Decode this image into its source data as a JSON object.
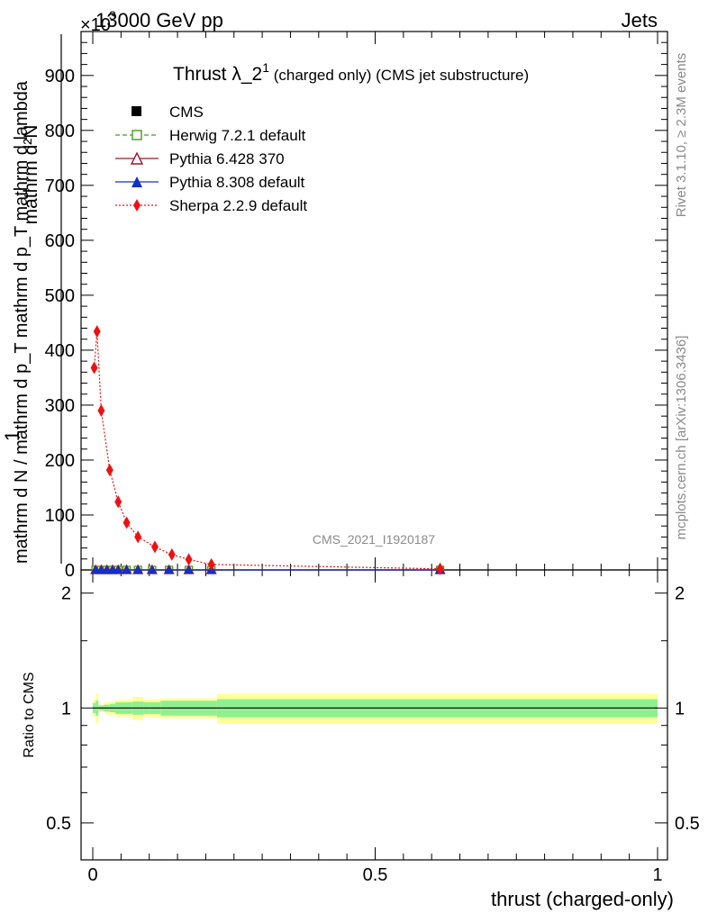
{
  "header": {
    "left_label": "13000 GeV pp",
    "right_label": "Jets",
    "y_multiplier": "×10",
    "y_multiplier_exp": "3"
  },
  "plot": {
    "title_main": "Thrust λ_2",
    "title_sup": "1",
    "title_rest": " (charged only) (CMS jet substructure)",
    "analysis_id": "CMS_2021_I1920187",
    "side_label_top": "Rivet 3.1.10, ≥ 2.3M events",
    "side_label_bottom": "mcplots.cern.ch [arXiv:1306.3436]",
    "ylabel_numer": "mathrm d²N",
    "ylabel_one": "1",
    "ylabel_denom": "mathrm d N / mathrm d p_T mathrm d p_T mathrm d lambda",
    "ratio_ylabel": "Ratio to CMS",
    "xlabel": "thrust (charged-only)"
  },
  "colors": {
    "cms": "#000000",
    "herwig": "#4a9a1a",
    "pythia6": "#9b1b2a",
    "pythia8": "#1030c8",
    "sherpa": "#ee1111",
    "band_inner": "#90f090",
    "band_outer": "#ffff99"
  },
  "chart_data": {
    "type": "line",
    "xlabel": "thrust (charged-only)",
    "ylabel": "1/(dN/dp_T) d²N/(dp_T dλ)",
    "xlim": [
      0,
      1
    ],
    "ylim": [
      0,
      980
    ],
    "y_scale_note": "×10³",
    "yticks": [
      0,
      100,
      200,
      300,
      400,
      500,
      600,
      700,
      800,
      900
    ],
    "xticks": [
      0,
      0.5,
      1
    ],
    "legend_position": "top-left",
    "series": [
      {
        "name": "CMS",
        "marker": "square",
        "x": [
          0.005,
          0.015,
          0.025,
          0.035,
          0.045,
          0.06,
          0.08,
          0.105,
          0.135,
          0.17,
          0.21,
          0.615
        ],
        "y": [
          0,
          0,
          0,
          0,
          0,
          0,
          0,
          0,
          0,
          0,
          0,
          0
        ]
      },
      {
        "name": "Herwig 7.2.1 default",
        "marker": "open-square",
        "x": [
          0.005,
          0.015,
          0.025,
          0.035,
          0.045,
          0.06,
          0.08,
          0.105,
          0.135,
          0.17,
          0.21,
          0.615
        ],
        "y": [
          0,
          0,
          0,
          0,
          0,
          0,
          0,
          0,
          0,
          0,
          0,
          0
        ]
      },
      {
        "name": "Pythia 6.428 370",
        "marker": "open-triangle",
        "x": [
          0.005,
          0.015,
          0.025,
          0.035,
          0.045,
          0.06,
          0.08,
          0.105,
          0.135,
          0.17,
          0.21,
          0.615
        ],
        "y": [
          0,
          0,
          0,
          0,
          0,
          0,
          0,
          0,
          0,
          0,
          0,
          0
        ]
      },
      {
        "name": "Pythia 8.308 default",
        "marker": "triangle",
        "x": [
          0.005,
          0.015,
          0.025,
          0.035,
          0.045,
          0.06,
          0.08,
          0.105,
          0.135,
          0.17,
          0.21,
          0.615
        ],
        "y": [
          0,
          0,
          0,
          0,
          0,
          0,
          0,
          0,
          0,
          0,
          0,
          0
        ]
      },
      {
        "name": "Sherpa 2.2.9 default",
        "marker": "diamond",
        "x": [
          0.0025,
          0.0075,
          0.015,
          0.03,
          0.045,
          0.06,
          0.08,
          0.11,
          0.14,
          0.17,
          0.21,
          0.615
        ],
        "y": [
          368,
          434,
          290,
          182,
          124,
          86,
          60,
          42,
          28,
          19,
          10,
          2
        ]
      }
    ],
    "ratio": {
      "ylabel": "Ratio to CMS",
      "ylim": [
        0.4,
        2.3
      ],
      "yticks": [
        0.5,
        1,
        2
      ],
      "bin_edges": [
        0,
        0.005,
        0.01,
        0.02,
        0.03,
        0.04,
        0.07,
        0.09,
        0.1,
        0.12,
        0.22,
        1.0
      ],
      "inner_half_width": [
        0.03,
        0.045,
        0.015,
        0.02,
        0.025,
        0.035,
        0.04,
        0.035,
        0.035,
        0.045,
        0.055
      ],
      "outer_half_width": [
        0.05,
        0.09,
        0.02,
        0.035,
        0.04,
        0.05,
        0.07,
        0.05,
        0.055,
        0.06,
        0.09
      ]
    }
  }
}
